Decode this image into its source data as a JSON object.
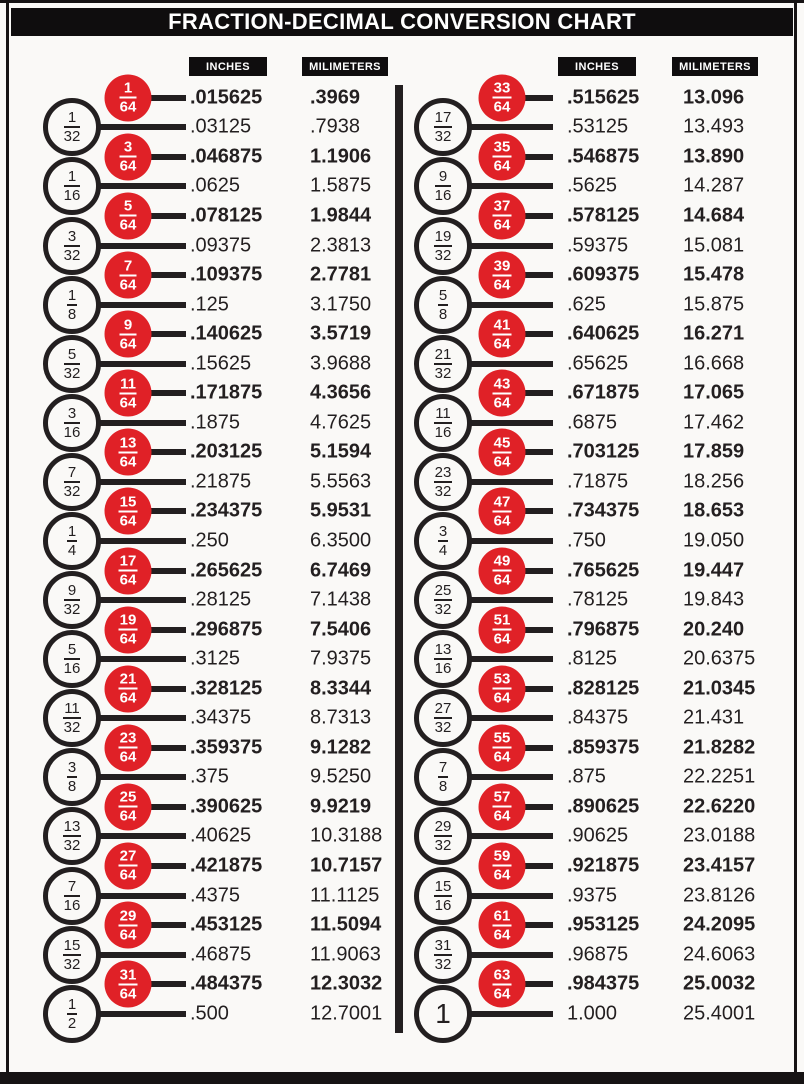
{
  "title": "FRACTION-DECIMAL CONVERSION CHART",
  "colors": {
    "accent_red": "#e02127",
    "ink": "#231f20",
    "bar_black": "#0f0d0e"
  },
  "columns": [
    {
      "headers": {
        "inches": "INCHES",
        "millimeters": "MILIMETERS"
      },
      "rows": [
        {
          "fraction": "1/64",
          "numerator": "1",
          "denominator": "64",
          "badge": "red",
          "inches": ".015625",
          "mm": ".3969"
        },
        {
          "fraction": "1/32",
          "numerator": "1",
          "denominator": "32",
          "badge": "outline",
          "inches": ".03125",
          "mm": ".7938"
        },
        {
          "fraction": "3/64",
          "numerator": "3",
          "denominator": "64",
          "badge": "red",
          "inches": ".046875",
          "mm": "1.1906"
        },
        {
          "fraction": "1/16",
          "numerator": "1",
          "denominator": "16",
          "badge": "outline",
          "inches": ".0625",
          "mm": "1.5875"
        },
        {
          "fraction": "5/64",
          "numerator": "5",
          "denominator": "64",
          "badge": "red",
          "inches": ".078125",
          "mm": "1.9844"
        },
        {
          "fraction": "3/32",
          "numerator": "3",
          "denominator": "32",
          "badge": "outline",
          "inches": ".09375",
          "mm": "2.3813"
        },
        {
          "fraction": "7/64",
          "numerator": "7",
          "denominator": "64",
          "badge": "red",
          "inches": ".109375",
          "mm": "2.7781"
        },
        {
          "fraction": "1/8",
          "numerator": "1",
          "denominator": "8",
          "badge": "outline",
          "inches": ".125",
          "mm": "3.1750"
        },
        {
          "fraction": "9/64",
          "numerator": "9",
          "denominator": "64",
          "badge": "red",
          "inches": ".140625",
          "mm": "3.5719"
        },
        {
          "fraction": "5/32",
          "numerator": "5",
          "denominator": "32",
          "badge": "outline",
          "inches": ".15625",
          "mm": "3.9688"
        },
        {
          "fraction": "11/64",
          "numerator": "11",
          "denominator": "64",
          "badge": "red",
          "inches": ".171875",
          "mm": "4.3656"
        },
        {
          "fraction": "3/16",
          "numerator": "3",
          "denominator": "16",
          "badge": "outline",
          "inches": ".1875",
          "mm": "4.7625"
        },
        {
          "fraction": "13/64",
          "numerator": "13",
          "denominator": "64",
          "badge": "red",
          "inches": ".203125",
          "mm": "5.1594"
        },
        {
          "fraction": "7/32",
          "numerator": "7",
          "denominator": "32",
          "badge": "outline",
          "inches": ".21875",
          "mm": "5.5563"
        },
        {
          "fraction": "15/64",
          "numerator": "15",
          "denominator": "64",
          "badge": "red",
          "inches": ".234375",
          "mm": "5.9531"
        },
        {
          "fraction": "1/4",
          "numerator": "1",
          "denominator": "4",
          "badge": "outline",
          "inches": ".250",
          "mm": "6.3500"
        },
        {
          "fraction": "17/64",
          "numerator": "17",
          "denominator": "64",
          "badge": "red",
          "inches": ".265625",
          "mm": "6.7469"
        },
        {
          "fraction": "9/32",
          "numerator": "9",
          "denominator": "32",
          "badge": "outline",
          "inches": ".28125",
          "mm": "7.1438"
        },
        {
          "fraction": "19/64",
          "numerator": "19",
          "denominator": "64",
          "badge": "red",
          "inches": ".296875",
          "mm": "7.5406"
        },
        {
          "fraction": "5/16",
          "numerator": "5",
          "denominator": "16",
          "badge": "outline",
          "inches": ".3125",
          "mm": "7.9375"
        },
        {
          "fraction": "21/64",
          "numerator": "21",
          "denominator": "64",
          "badge": "red",
          "inches": ".328125",
          "mm": "8.3344"
        },
        {
          "fraction": "11/32",
          "numerator": "11",
          "denominator": "32",
          "badge": "outline",
          "inches": ".34375",
          "mm": "8.7313"
        },
        {
          "fraction": "23/64",
          "numerator": "23",
          "denominator": "64",
          "badge": "red",
          "inches": ".359375",
          "mm": "9.1282"
        },
        {
          "fraction": "3/8",
          "numerator": "3",
          "denominator": "8",
          "badge": "outline",
          "inches": ".375",
          "mm": "9.5250"
        },
        {
          "fraction": "25/64",
          "numerator": "25",
          "denominator": "64",
          "badge": "red",
          "inches": ".390625",
          "mm": "9.9219"
        },
        {
          "fraction": "13/32",
          "numerator": "13",
          "denominator": "32",
          "badge": "outline",
          "inches": ".40625",
          "mm": "10.3188"
        },
        {
          "fraction": "27/64",
          "numerator": "27",
          "denominator": "64",
          "badge": "red",
          "inches": ".421875",
          "mm": "10.7157"
        },
        {
          "fraction": "7/16",
          "numerator": "7",
          "denominator": "16",
          "badge": "outline",
          "inches": ".4375",
          "mm": "11.1125"
        },
        {
          "fraction": "29/64",
          "numerator": "29",
          "denominator": "64",
          "badge": "red",
          "inches": ".453125",
          "mm": "11.5094"
        },
        {
          "fraction": "15/32",
          "numerator": "15",
          "denominator": "32",
          "badge": "outline",
          "inches": ".46875",
          "mm": "11.9063"
        },
        {
          "fraction": "31/64",
          "numerator": "31",
          "denominator": "64",
          "badge": "red",
          "inches": ".484375",
          "mm": "12.3032"
        },
        {
          "fraction": "1/2",
          "numerator": "1",
          "denominator": "2",
          "badge": "outline",
          "inches": ".500",
          "mm": "12.7001"
        }
      ]
    },
    {
      "headers": {
        "inches": "INCHES",
        "millimeters": "MILIMETERS"
      },
      "rows": [
        {
          "fraction": "33/64",
          "numerator": "33",
          "denominator": "64",
          "badge": "red",
          "inches": ".515625",
          "mm": "13.096"
        },
        {
          "fraction": "17/32",
          "numerator": "17",
          "denominator": "32",
          "badge": "outline",
          "inches": ".53125",
          "mm": "13.493"
        },
        {
          "fraction": "35/64",
          "numerator": "35",
          "denominator": "64",
          "badge": "red",
          "inches": ".546875",
          "mm": "13.890"
        },
        {
          "fraction": "9/16",
          "numerator": "9",
          "denominator": "16",
          "badge": "outline",
          "inches": ".5625",
          "mm": "14.287"
        },
        {
          "fraction": "37/64",
          "numerator": "37",
          "denominator": "64",
          "badge": "red",
          "inches": ".578125",
          "mm": "14.684"
        },
        {
          "fraction": "19/32",
          "numerator": "19",
          "denominator": "32",
          "badge": "outline",
          "inches": ".59375",
          "mm": "15.081"
        },
        {
          "fraction": "39/64",
          "numerator": "39",
          "denominator": "64",
          "badge": "red",
          "inches": ".609375",
          "mm": "15.478"
        },
        {
          "fraction": "5/8",
          "numerator": "5",
          "denominator": "8",
          "badge": "outline",
          "inches": ".625",
          "mm": "15.875"
        },
        {
          "fraction": "41/64",
          "numerator": "41",
          "denominator": "64",
          "badge": "red",
          "inches": ".640625",
          "mm": "16.271"
        },
        {
          "fraction": "21/32",
          "numerator": "21",
          "denominator": "32",
          "badge": "outline",
          "inches": ".65625",
          "mm": "16.668"
        },
        {
          "fraction": "43/64",
          "numerator": "43",
          "denominator": "64",
          "badge": "red",
          "inches": ".671875",
          "mm": "17.065"
        },
        {
          "fraction": "11/16",
          "numerator": "11",
          "denominator": "16",
          "badge": "outline",
          "inches": ".6875",
          "mm": "17.462"
        },
        {
          "fraction": "45/64",
          "numerator": "45",
          "denominator": "64",
          "badge": "red",
          "inches": ".703125",
          "mm": "17.859"
        },
        {
          "fraction": "23/32",
          "numerator": "23",
          "denominator": "32",
          "badge": "outline",
          "inches": ".71875",
          "mm": "18.256"
        },
        {
          "fraction": "47/64",
          "numerator": "47",
          "denominator": "64",
          "badge": "red",
          "inches": ".734375",
          "mm": "18.653"
        },
        {
          "fraction": "3/4",
          "numerator": "3",
          "denominator": "4",
          "badge": "outline",
          "inches": ".750",
          "mm": "19.050"
        },
        {
          "fraction": "49/64",
          "numerator": "49",
          "denominator": "64",
          "badge": "red",
          "inches": ".765625",
          "mm": "19.447"
        },
        {
          "fraction": "25/32",
          "numerator": "25",
          "denominator": "32",
          "badge": "outline",
          "inches": ".78125",
          "mm": "19.843"
        },
        {
          "fraction": "51/64",
          "numerator": "51",
          "denominator": "64",
          "badge": "red",
          "inches": ".796875",
          "mm": "20.240"
        },
        {
          "fraction": "13/16",
          "numerator": "13",
          "denominator": "16",
          "badge": "outline",
          "inches": ".8125",
          "mm": "20.6375"
        },
        {
          "fraction": "53/64",
          "numerator": "53",
          "denominator": "64",
          "badge": "red",
          "inches": ".828125",
          "mm": "21.0345"
        },
        {
          "fraction": "27/32",
          "numerator": "27",
          "denominator": "32",
          "badge": "outline",
          "inches": ".84375",
          "mm": "21.431"
        },
        {
          "fraction": "55/64",
          "numerator": "55",
          "denominator": "64",
          "badge": "red",
          "inches": ".859375",
          "mm": "21.8282"
        },
        {
          "fraction": "7/8",
          "numerator": "7",
          "denominator": "8",
          "badge": "outline",
          "inches": ".875",
          "mm": "22.2251"
        },
        {
          "fraction": "57/64",
          "numerator": "57",
          "denominator": "64",
          "badge": "red",
          "inches": ".890625",
          "mm": "22.6220"
        },
        {
          "fraction": "29/32",
          "numerator": "29",
          "denominator": "32",
          "badge": "outline",
          "inches": ".90625",
          "mm": "23.0188"
        },
        {
          "fraction": "59/64",
          "numerator": "59",
          "denominator": "64",
          "badge": "red",
          "inches": ".921875",
          "mm": "23.4157"
        },
        {
          "fraction": "15/16",
          "numerator": "15",
          "denominator": "16",
          "badge": "outline",
          "inches": ".9375",
          "mm": "23.8126"
        },
        {
          "fraction": "61/64",
          "numerator": "61",
          "denominator": "64",
          "badge": "red",
          "inches": ".953125",
          "mm": "24.2095"
        },
        {
          "fraction": "31/32",
          "numerator": "31",
          "denominator": "32",
          "badge": "outline",
          "inches": ".96875",
          "mm": "24.6063"
        },
        {
          "fraction": "63/64",
          "numerator": "63",
          "denominator": "64",
          "badge": "red",
          "inches": ".984375",
          "mm": "25.0032"
        },
        {
          "fraction": "1",
          "numerator": "1",
          "denominator": "",
          "badge": "outline-whole",
          "inches": "1.000",
          "mm": "25.4001"
        }
      ]
    }
  ]
}
